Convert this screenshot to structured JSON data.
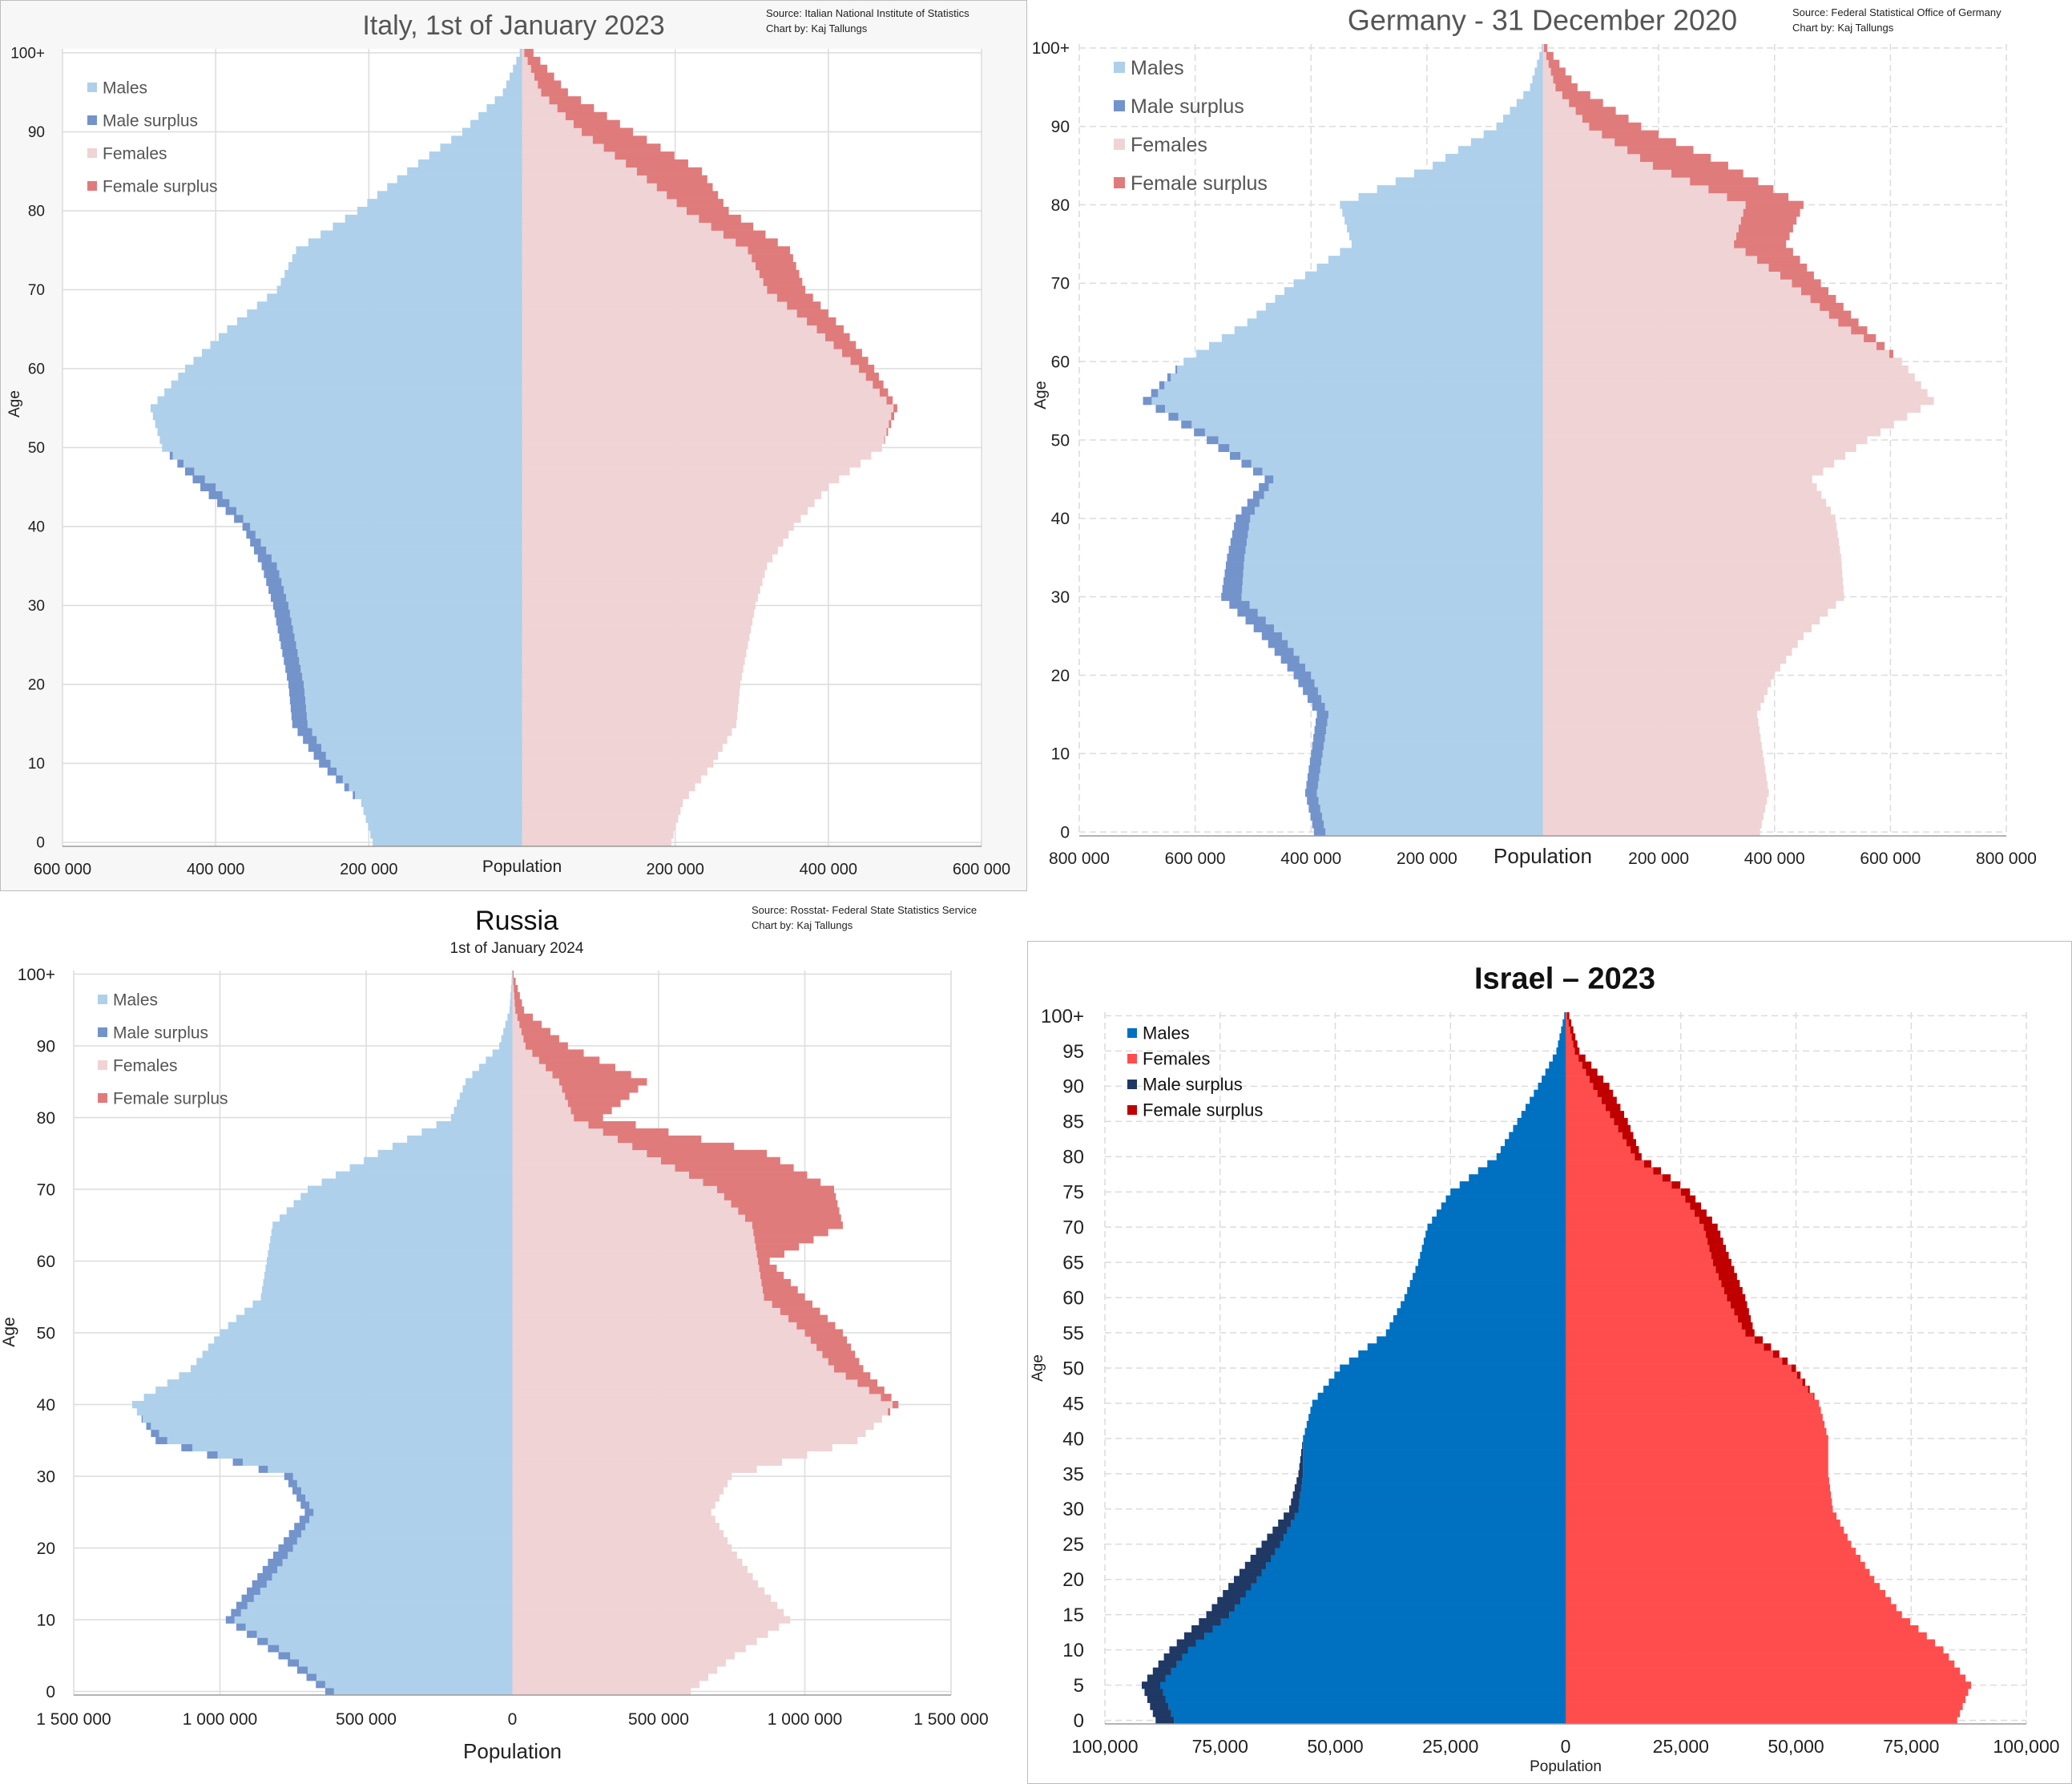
{
  "chart_data": [
    {
      "type": "bar",
      "title": "Italy, 1st of January 2023",
      "source_lines": [
        "Source: Italian National Institute of Statistics",
        "Chart by: Kaj Tallungs"
      ],
      "xlabel": "Population",
      "ylabel": "Age",
      "xlim": [
        -600000,
        600000
      ],
      "x_ticks": [
        "600 000",
        "400 000",
        "200 000",
        "",
        "200 000",
        "400 000",
        "600 000"
      ],
      "y_ticks": [
        "0",
        "10",
        "20",
        "30",
        "40",
        "50",
        "60",
        "70",
        "80",
        "90",
        "100+"
      ],
      "legend": [
        "Males",
        "Male surplus",
        "Females",
        "Female surplus"
      ],
      "legend_position": "top-left",
      "colors": {
        "males": "#aed0ea",
        "male_surplus": "#7393cb",
        "females": "#efd3d5",
        "female_surplus": "#e07b7b"
      },
      "ages": [
        0,
        5,
        10,
        15,
        20,
        25,
        30,
        35,
        40,
        45,
        50,
        55,
        60,
        65,
        70,
        75,
        80,
        85,
        90,
        95,
        100
      ],
      "series": [
        {
          "name": "Males",
          "values": [
            195000,
            210000,
            265000,
            300000,
            305000,
            315000,
            325000,
            340000,
            365000,
            420000,
            470000,
            485000,
            440000,
            385000,
            320000,
            295000,
            215000,
            150000,
            78000,
            25000,
            3000
          ]
        },
        {
          "name": "Females",
          "values": [
            195000,
            210000,
            250000,
            280000,
            285000,
            295000,
            305000,
            320000,
            355000,
            400000,
            470000,
            490000,
            460000,
            420000,
            370000,
            350000,
            270000,
            235000,
            145000,
            60000,
            15000
          ]
        }
      ]
    },
    {
      "type": "bar",
      "title": "Germany - 31 December 2020",
      "source_lines": [
        "Source: Federal Statistical Office of Germany",
        "Chart by: Kaj Tallungs"
      ],
      "xlabel": "Population",
      "ylabel": "Age",
      "xlim": [
        -800000,
        800000
      ],
      "x_ticks": [
        "800 000",
        "600 000",
        "400 000",
        "200 000",
        "",
        "200 000",
        "400 000",
        "600 000",
        "800 000"
      ],
      "y_ticks": [
        "0",
        "10",
        "20",
        "30",
        "40",
        "50",
        "60",
        "70",
        "80",
        "90",
        "100+"
      ],
      "legend": [
        "Males",
        "Male surplus",
        "Females",
        "Female surplus"
      ],
      "legend_position": "top-left",
      "colors": {
        "males": "#aed0ea",
        "male_surplus": "#7393cb",
        "females": "#efd3d5",
        "female_surplus": "#e07b7b"
      },
      "ages": [
        0,
        5,
        10,
        15,
        20,
        25,
        30,
        35,
        40,
        45,
        50,
        55,
        60,
        65,
        70,
        75,
        80,
        85,
        90,
        95,
        100
      ],
      "series": [
        {
          "name": "Males",
          "values": [
            395000,
            410000,
            400000,
            390000,
            430000,
            485000,
            555000,
            545000,
            530000,
            480000,
            580000,
            690000,
            620000,
            510000,
            430000,
            330000,
            350000,
            190000,
            80000,
            22000,
            2000
          ]
        },
        {
          "name": "Females",
          "values": [
            375000,
            390000,
            380000,
            370000,
            400000,
            450000,
            520000,
            515000,
            505000,
            465000,
            560000,
            675000,
            620000,
            545000,
            480000,
            420000,
            450000,
            320000,
            170000,
            60000,
            8000
          ]
        }
      ]
    },
    {
      "type": "bar",
      "title": "Russia",
      "subtitle": "1st of January 2024",
      "source_lines": [
        "Source: Rosstat- Federal State Statistics Service",
        "Chart by: Kaj Tallungs"
      ],
      "xlabel": "Population",
      "ylabel": "Age",
      "xlim": [
        -1500000,
        1500000
      ],
      "x_ticks": [
        "1 500 000",
        "1 000 000",
        "500 000",
        "0",
        "500 000",
        "1 000 000",
        "1 500 000"
      ],
      "y_ticks": [
        "0",
        "10",
        "20",
        "30",
        "40",
        "50",
        "60",
        "70",
        "80",
        "90",
        "100+"
      ],
      "legend": [
        "Males",
        "Male surplus",
        "Females",
        "Female surplus"
      ],
      "legend_position": "top-left",
      "colors": {
        "males": "#aed0ea",
        "male_surplus": "#7393cb",
        "females": "#efd3d5",
        "female_surplus": "#e07b7b"
      },
      "ages": [
        0,
        5,
        10,
        15,
        20,
        25,
        30,
        35,
        40,
        45,
        50,
        55,
        60,
        65,
        70,
        75,
        80,
        85,
        90,
        95,
        100
      ],
      "series": [
        {
          "name": "Males",
          "values": [
            640000,
            800000,
            980000,
            890000,
            800000,
            710000,
            780000,
            1220000,
            1300000,
            1100000,
            1000000,
            860000,
            840000,
            820000,
            700000,
            460000,
            210000,
            160000,
            45000,
            10000,
            1000
          ]
        },
        {
          "name": "Females",
          "values": [
            610000,
            760000,
            950000,
            840000,
            750000,
            680000,
            750000,
            1180000,
            1320000,
            1200000,
            1130000,
            1000000,
            880000,
            1130000,
            1100000,
            870000,
            310000,
            460000,
            190000,
            40000,
            4000
          ]
        }
      ]
    },
    {
      "type": "bar",
      "title": "Israel – 2023",
      "xlabel": "Population",
      "ylabel": "Age",
      "xlim": [
        -100000,
        100000
      ],
      "x_ticks": [
        "100,000",
        "75,000",
        "50,000",
        "25,000",
        "0",
        "25,000",
        "50,000",
        "75,000",
        "100,000"
      ],
      "y_ticks": [
        "0",
        "5",
        "10",
        "15",
        "20",
        "25",
        "30",
        "35",
        "40",
        "45",
        "50",
        "55",
        "60",
        "65",
        "70",
        "75",
        "80",
        "85",
        "90",
        "95",
        "100+"
      ],
      "legend": [
        "Males",
        "Females",
        "Male surplus",
        "Female surplus"
      ],
      "legend_position": "top-left",
      "colors": {
        "males": "#0070c0",
        "females": "#ff4d4d",
        "male_surplus": "#1f3864",
        "female_surplus": "#c00000"
      },
      "ages": [
        0,
        5,
        10,
        15,
        20,
        25,
        30,
        35,
        40,
        45,
        50,
        55,
        60,
        65,
        70,
        75,
        80,
        85,
        90,
        95,
        100
      ],
      "series": [
        {
          "name": "Males",
          "values": [
            89000,
            92000,
            86000,
            78000,
            72000,
            66000,
            60000,
            58000,
            57000,
            55000,
            49000,
            39000,
            35000,
            32000,
            30000,
            25000,
            15000,
            10500,
            6000,
            2000,
            300
          ]
        },
        {
          "name": "Females",
          "values": [
            85000,
            88000,
            82000,
            73000,
            67000,
            62000,
            58000,
            57000,
            57000,
            55000,
            50000,
            41000,
            39000,
            36000,
            33000,
            27000,
            16500,
            13500,
            9500,
            3000,
            800
          ]
        }
      ]
    }
  ]
}
